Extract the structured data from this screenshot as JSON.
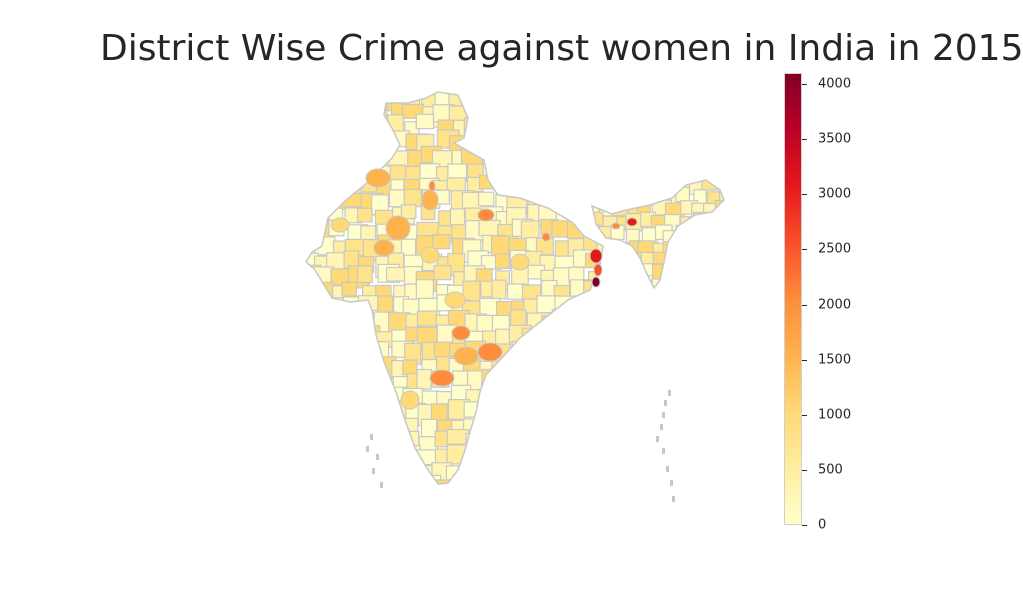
{
  "title": "District Wise Crime against women in India in 2015",
  "colors": {
    "district_border": "#c8c8c8",
    "scale": [
      "#ffffcc",
      "#ffeda0",
      "#fed976",
      "#feb24c",
      "#fd8d3c",
      "#fc4e2a",
      "#e31a1c",
      "#bd0026",
      "#800026"
    ]
  },
  "colorbar": {
    "min": 0,
    "max": 4100,
    "ticks": [
      "0",
      "500",
      "1000",
      "1500",
      "2000",
      "2500",
      "3000",
      "3500",
      "4000"
    ]
  }
}
